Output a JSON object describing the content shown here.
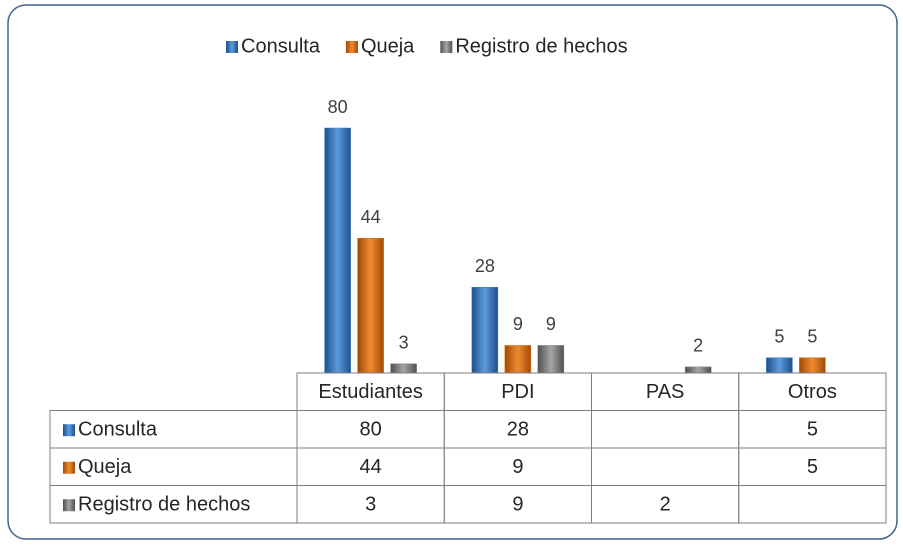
{
  "chart_data": {
    "type": "bar",
    "categories": [
      "Estudiantes",
      "PDI",
      "PAS",
      "Otros"
    ],
    "series": [
      {
        "name": "Consulta",
        "color": "#3b7dc9",
        "values": [
          80,
          28,
          null,
          5
        ]
      },
      {
        "name": "Queja",
        "color": "#e46c0a",
        "values": [
          44,
          9,
          null,
          5
        ]
      },
      {
        "name": "Registro de hechos",
        "color": "#808080",
        "values": [
          3,
          9,
          2,
          null
        ]
      }
    ],
    "legend": "top",
    "data_table": true
  }
}
